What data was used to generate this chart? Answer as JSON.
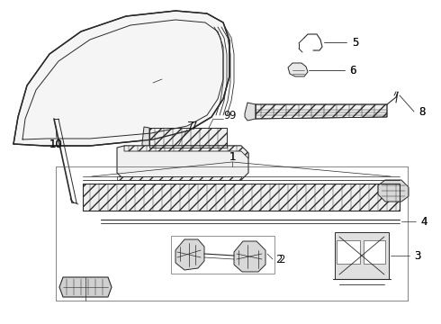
{
  "background_color": "#ffffff",
  "fig_width": 4.9,
  "fig_height": 3.6,
  "dpi": 100,
  "line_color": "#2a2a2a",
  "label_fontsize": 8.5
}
